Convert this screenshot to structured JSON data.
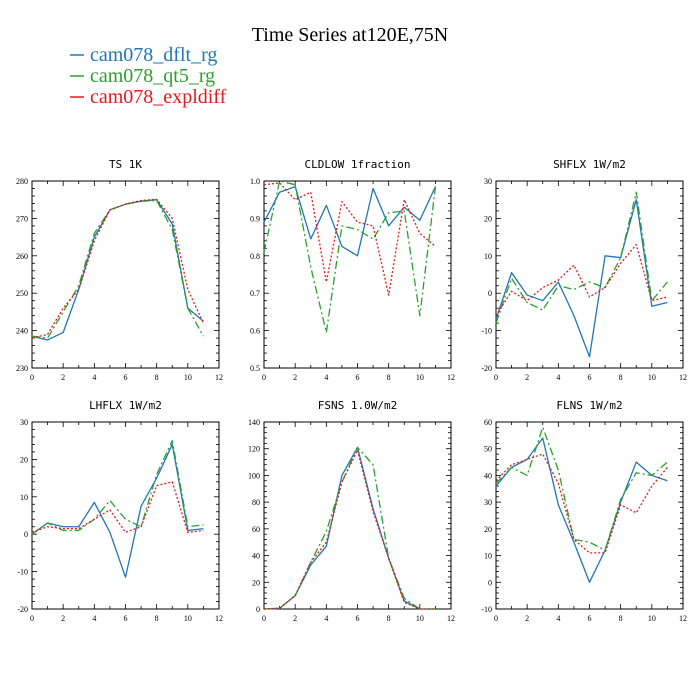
{
  "figure_title": "Time Series at120E,75N",
  "series_colors": {
    "dflt": "#1f77b4",
    "qt5": "#2ca02c",
    "expl": "#e31a1c"
  },
  "legend": [
    {
      "id": "dflt",
      "label": "cam078_dflt_rg",
      "color": "#1f77b4",
      "dash": ""
    },
    {
      "id": "qt5",
      "label": "cam078_qt5_rg",
      "color": "#2ca02c",
      "dash": "8,3,2,3"
    },
    {
      "id": "expl",
      "label": "cam078_expldiff",
      "color": "#e31a1c",
      "dash": "2,2"
    }
  ],
  "chart_data": [
    {
      "type": "line",
      "title": "TS  1K",
      "x": [
        0,
        1,
        2,
        3,
        4,
        5,
        6,
        7,
        8,
        9,
        10,
        11
      ],
      "xlim": [
        0,
        12
      ],
      "xticks": [
        0,
        2,
        4,
        6,
        8,
        10,
        12
      ],
      "ylim": [
        230,
        280
      ],
      "yticks": [
        230,
        240,
        250,
        260,
        270,
        280
      ],
      "series": [
        {
          "name": "cam078_dflt_rg",
          "key": "dflt",
          "values": [
            238.5,
            237.5,
            239.5,
            251,
            265,
            272.3,
            273.8,
            274.6,
            275.0,
            268.5,
            246,
            242.5
          ]
        },
        {
          "name": "cam078_qt5_rg",
          "key": "qt5",
          "values": [
            238.5,
            238,
            245,
            252,
            266,
            272.3,
            273.8,
            274.6,
            274.8,
            267,
            246,
            238.5
          ]
        },
        {
          "name": "cam078_expldiff",
          "key": "expl",
          "values": [
            238,
            239,
            246,
            251,
            264,
            272.3,
            273.8,
            274.8,
            275.1,
            270,
            251,
            242
          ]
        }
      ]
    },
    {
      "type": "line",
      "title": "CLDLOW  1fraction",
      "x": [
        0,
        1,
        2,
        3,
        4,
        5,
        6,
        7,
        8,
        9,
        10,
        11
      ],
      "xlim": [
        0,
        12
      ],
      "xticks": [
        0,
        2,
        4,
        6,
        8,
        10,
        12
      ],
      "ylim": [
        0.5,
        1.0
      ],
      "yticks": [
        0.5,
        0.6,
        0.7,
        0.8,
        0.9,
        1.0
      ],
      "series": [
        {
          "name": "cam078_dflt_rg",
          "key": "dflt",
          "values": [
            0.89,
            0.97,
            0.985,
            0.845,
            0.935,
            0.825,
            0.8,
            0.98,
            0.88,
            0.93,
            0.895,
            0.985
          ]
        },
        {
          "name": "cam078_qt5_rg",
          "key": "qt5",
          "values": [
            0.81,
            1.0,
            0.99,
            0.77,
            0.595,
            0.88,
            0.87,
            0.845,
            0.915,
            0.92,
            0.64,
            0.985
          ]
        },
        {
          "name": "cam078_expldiff",
          "key": "expl",
          "values": [
            0.99,
            0.995,
            0.95,
            0.97,
            0.73,
            0.945,
            0.89,
            0.88,
            0.695,
            0.95,
            0.86,
            0.825
          ]
        }
      ]
    },
    {
      "type": "line",
      "title": "SHFLX  1W/m2",
      "x": [
        0,
        1,
        2,
        3,
        4,
        5,
        6,
        7,
        8,
        9,
        10,
        11
      ],
      "xlim": [
        0,
        12
      ],
      "xticks": [
        0,
        2,
        4,
        6,
        8,
        10,
        12
      ],
      "ylim": [
        -20,
        30
      ],
      "yticks": [
        -20,
        -10,
        0,
        10,
        20,
        30
      ],
      "series": [
        {
          "name": "cam078_dflt_rg",
          "key": "dflt",
          "values": [
            -7,
            5.5,
            -0.5,
            -2,
            3,
            -6,
            -17,
            10,
            9.5,
            25,
            -3.5,
            -2.5
          ]
        },
        {
          "name": "cam078_qt5_rg",
          "key": "qt5",
          "values": [
            -8,
            4,
            -2.5,
            -4.5,
            2,
            1,
            3,
            1.5,
            9.5,
            27,
            -2,
            3
          ]
        },
        {
          "name": "cam078_expldiff",
          "key": "expl",
          "values": [
            -6,
            0.5,
            -2,
            1.5,
            3.5,
            7.5,
            -1,
            1.5,
            8,
            13,
            -2,
            -1
          ]
        }
      ]
    },
    {
      "type": "line",
      "title": "LHFLX  1W/m2",
      "x": [
        0,
        1,
        2,
        3,
        4,
        5,
        6,
        7,
        8,
        9,
        10,
        11
      ],
      "xlim": [
        0,
        12
      ],
      "xticks": [
        0,
        2,
        4,
        6,
        8,
        10,
        12
      ],
      "ylim": [
        -20,
        30
      ],
      "yticks": [
        -20,
        -10,
        0,
        10,
        20,
        30
      ],
      "series": [
        {
          "name": "cam078_dflt_rg",
          "key": "dflt",
          "values": [
            0,
            3,
            2,
            2,
            8.5,
            0.5,
            -11.5,
            7.5,
            15,
            24,
            1,
            1.5
          ]
        },
        {
          "name": "cam078_qt5_rg",
          "key": "qt5",
          "values": [
            0,
            3,
            1,
            1,
            4,
            9,
            4,
            2,
            16,
            25,
            2,
            2.5
          ]
        },
        {
          "name": "cam078_expldiff",
          "key": "expl",
          "values": [
            0.5,
            2,
            1.5,
            1.5,
            4,
            6.5,
            0.5,
            2,
            13,
            14,
            0.5,
            1
          ]
        }
      ]
    },
    {
      "type": "line",
      "title": "FSNS  1.0W/m2",
      "x": [
        0,
        1,
        2,
        3,
        4,
        5,
        6,
        7,
        8,
        9,
        10,
        11
      ],
      "xlim": [
        0,
        12
      ],
      "xticks": [
        0,
        2,
        4,
        6,
        8,
        10,
        12
      ],
      "ylim": [
        0,
        140
      ],
      "yticks": [
        0,
        20,
        40,
        60,
        80,
        100,
        120,
        140
      ],
      "series": [
        {
          "name": "cam078_dflt_rg",
          "key": "dflt",
          "values": [
            0,
            0.5,
            10,
            33,
            47,
            100,
            121,
            75,
            38,
            6,
            0,
            0
          ]
        },
        {
          "name": "cam078_qt5_rg",
          "key": "qt5",
          "values": [
            0,
            0.5,
            10,
            35,
            58,
            95,
            121,
            108,
            38,
            8,
            0,
            0
          ]
        },
        {
          "name": "cam078_expldiff",
          "key": "expl",
          "values": [
            0,
            0.5,
            10,
            35,
            50,
            95,
            119,
            73,
            38,
            5,
            0,
            0
          ]
        }
      ]
    },
    {
      "type": "line",
      "title": "FLNS  1W/m2",
      "x": [
        0,
        1,
        2,
        3,
        4,
        5,
        6,
        7,
        8,
        9,
        10,
        11
      ],
      "xlim": [
        0,
        12
      ],
      "xticks": [
        0,
        2,
        4,
        6,
        8,
        10,
        12
      ],
      "ylim": [
        -10,
        60
      ],
      "yticks": [
        -10,
        0,
        10,
        20,
        30,
        40,
        50,
        60
      ],
      "series": [
        {
          "name": "cam078_dflt_rg",
          "key": "dflt",
          "values": [
            36,
            43,
            46,
            54,
            29,
            15,
            0,
            12,
            30,
            45,
            40,
            38
          ]
        },
        {
          "name": "cam078_qt5_rg",
          "key": "qt5",
          "values": [
            37,
            43,
            40,
            58,
            42,
            16,
            15,
            12,
            31,
            41,
            40,
            45
          ]
        },
        {
          "name": "cam078_expldiff",
          "key": "expl",
          "values": [
            38,
            44,
            46,
            48,
            37,
            16,
            11,
            11,
            29,
            26,
            36,
            43
          ]
        }
      ]
    }
  ]
}
